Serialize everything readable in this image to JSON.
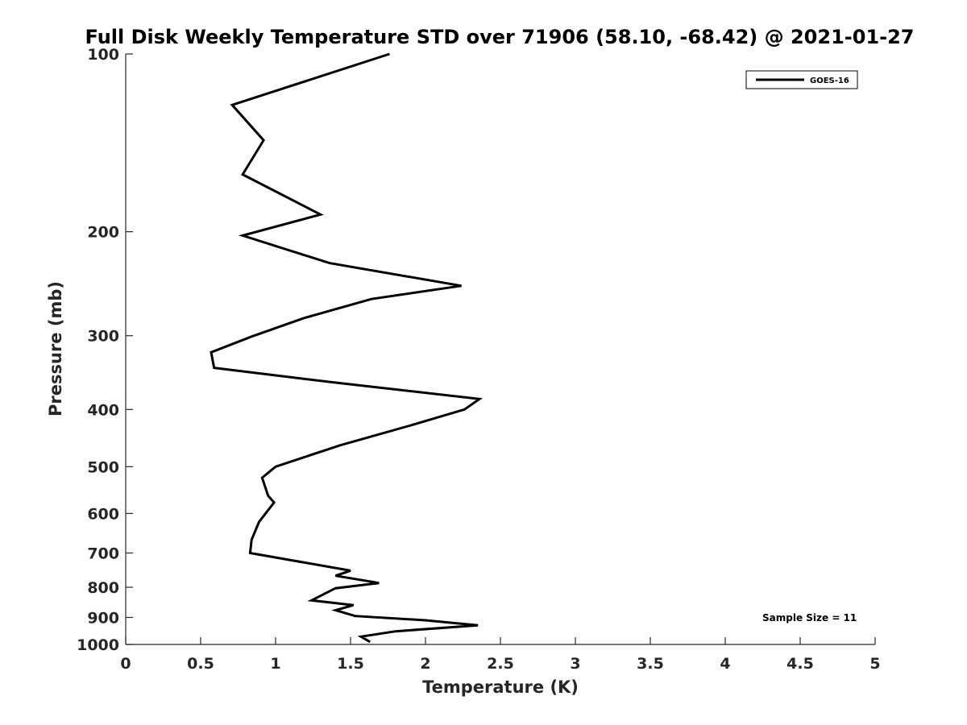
{
  "chart_data": {
    "type": "line",
    "title": "Full Disk Weekly Temperature STD over 71906 (58.10, -68.42) @ 2021-01-27",
    "xlabel": "Temperature (K)",
    "ylabel": "Pressure (mb)",
    "xlim": [
      0,
      5
    ],
    "ylim": [
      100,
      1000
    ],
    "yscale": "log",
    "y_reversed": true,
    "grid": false,
    "legend_position": "top-right",
    "x_ticks": [
      "0",
      "0.5",
      "1",
      "1.5",
      "2",
      "2.5",
      "3",
      "3.5",
      "4",
      "4.5",
      "5"
    ],
    "y_ticks": [
      "100",
      "200",
      "300",
      "400",
      "500",
      "600",
      "700",
      "800",
      "900",
      "1000"
    ],
    "annotation": "Sample Size = 11",
    "series": [
      {
        "name": "GOES-16",
        "color": "#000000",
        "points": [
          {
            "x": 1.76,
            "y": 100
          },
          {
            "x": 0.71,
            "y": 122
          },
          {
            "x": 0.92,
            "y": 140
          },
          {
            "x": 0.78,
            "y": 160
          },
          {
            "x": 1.3,
            "y": 187
          },
          {
            "x": 0.78,
            "y": 203
          },
          {
            "x": 1.36,
            "y": 226
          },
          {
            "x": 2.24,
            "y": 247
          },
          {
            "x": 1.64,
            "y": 260
          },
          {
            "x": 1.19,
            "y": 280
          },
          {
            "x": 0.84,
            "y": 301
          },
          {
            "x": 0.57,
            "y": 320
          },
          {
            "x": 0.59,
            "y": 340
          },
          {
            "x": 1.39,
            "y": 360
          },
          {
            "x": 2.36,
            "y": 384
          },
          {
            "x": 2.26,
            "y": 400
          },
          {
            "x": 1.91,
            "y": 425
          },
          {
            "x": 1.43,
            "y": 460
          },
          {
            "x": 1.0,
            "y": 500
          },
          {
            "x": 0.91,
            "y": 522
          },
          {
            "x": 0.95,
            "y": 560
          },
          {
            "x": 0.99,
            "y": 575
          },
          {
            "x": 0.89,
            "y": 620
          },
          {
            "x": 0.84,
            "y": 665
          },
          {
            "x": 0.83,
            "y": 700
          },
          {
            "x": 1.5,
            "y": 750
          },
          {
            "x": 1.4,
            "y": 765
          },
          {
            "x": 1.69,
            "y": 787
          },
          {
            "x": 1.4,
            "y": 803
          },
          {
            "x": 1.24,
            "y": 842
          },
          {
            "x": 1.52,
            "y": 858
          },
          {
            "x": 1.4,
            "y": 875
          },
          {
            "x": 1.53,
            "y": 895
          },
          {
            "x": 2.0,
            "y": 910
          },
          {
            "x": 2.35,
            "y": 928
          },
          {
            "x": 1.8,
            "y": 950
          },
          {
            "x": 1.57,
            "y": 970
          },
          {
            "x": 1.63,
            "y": 990
          }
        ]
      }
    ]
  }
}
